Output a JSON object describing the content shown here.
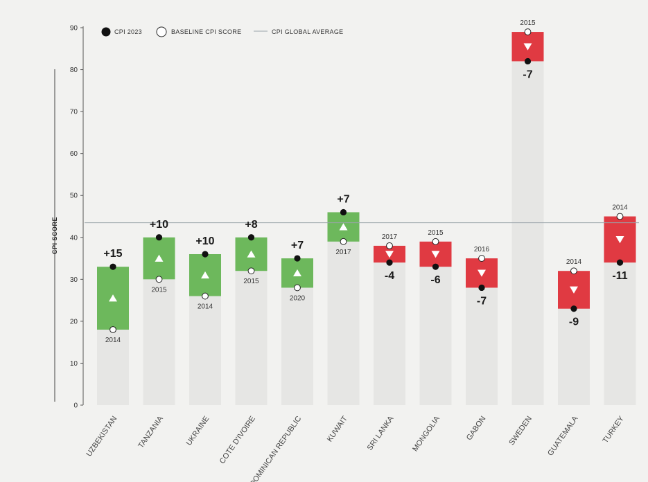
{
  "chart_data": {
    "type": "bar",
    "ylabel": "CPI SCORE",
    "ylim": [
      0,
      90
    ],
    "yticks": [
      0,
      10,
      20,
      30,
      40,
      50,
      60,
      70,
      80,
      90
    ],
    "global_average": 43.5,
    "legend": {
      "cpi_2023": "CPI 2023",
      "baseline": "BASELINE CPI SCORE",
      "global_average": "CPI GLOBAL AVERAGE"
    },
    "colors": {
      "increase": "#6db85c",
      "decrease": "#e03a42",
      "background_bar": "#e6e6e4",
      "average_line": "#9aa4aa"
    },
    "series": [
      {
        "country": "UZBEKISTAN",
        "cpi_2023": 33,
        "baseline": 18,
        "baseline_year": "2014",
        "change": "+15"
      },
      {
        "country": "TANZANIA",
        "cpi_2023": 40,
        "baseline": 30,
        "baseline_year": "2015",
        "change": "+10"
      },
      {
        "country": "UKRAINE",
        "cpi_2023": 36,
        "baseline": 26,
        "baseline_year": "2014",
        "change": "+10"
      },
      {
        "country": "COTE D'IVOIRE",
        "cpi_2023": 40,
        "baseline": 32,
        "baseline_year": "2015",
        "change": "+8"
      },
      {
        "country": "DOMINICAN REPUBLIC",
        "cpi_2023": 35,
        "baseline": 28,
        "baseline_year": "2020",
        "change": "+7"
      },
      {
        "country": "KUWAIT",
        "cpi_2023": 46,
        "baseline": 39,
        "baseline_year": "2017",
        "change": "+7"
      },
      {
        "country": "SRI LANKA",
        "cpi_2023": 34,
        "baseline": 38,
        "baseline_year": "2017",
        "change": "-4"
      },
      {
        "country": "MONGOLIA",
        "cpi_2023": 33,
        "baseline": 39,
        "baseline_year": "2015",
        "change": "-6"
      },
      {
        "country": "GABON",
        "cpi_2023": 28,
        "baseline": 35,
        "baseline_year": "2016",
        "change": "-7"
      },
      {
        "country": "SWEDEN",
        "cpi_2023": 82,
        "baseline": 89,
        "baseline_year": "2015",
        "change": "-7"
      },
      {
        "country": "GUATEMALA",
        "cpi_2023": 23,
        "baseline": 32,
        "baseline_year": "2014",
        "change": "-9"
      },
      {
        "country": "TURKEY",
        "cpi_2023": 34,
        "baseline": 45,
        "baseline_year": "2014",
        "change": "-11"
      }
    ]
  }
}
